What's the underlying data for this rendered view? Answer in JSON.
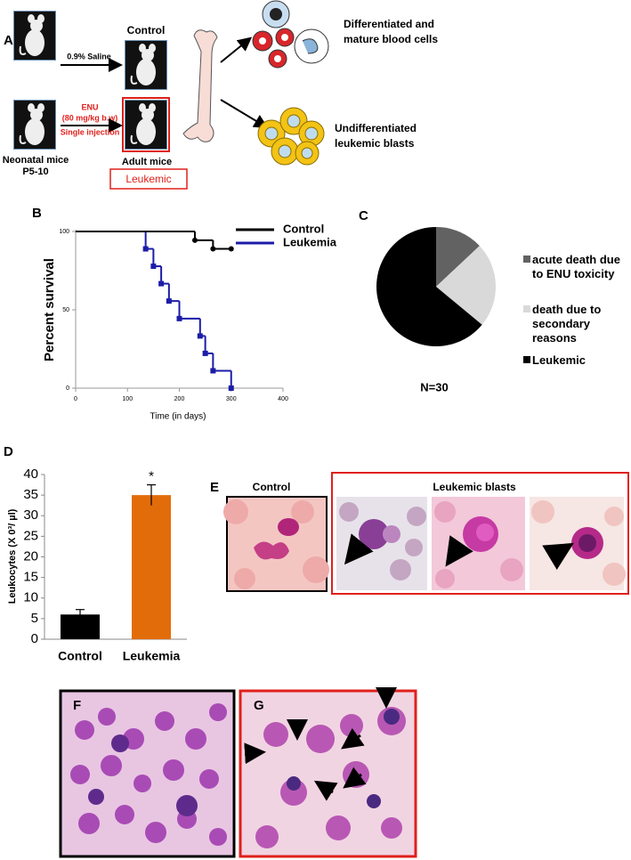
{
  "panel_labels": [
    "A",
    "B",
    "C",
    "D",
    "E",
    "F",
    "G"
  ],
  "diagram": {
    "control": "Control",
    "saline": "0.9% Saline",
    "enu": "ENU",
    "dose": "(80 mg/kg b.w)",
    "injection": "Single injection",
    "neonatal": "Neonatal mice",
    "age": "P5-10",
    "adult": "Adult mice",
    "leukemic": "Leukemic",
    "differentiated": [
      "Differentiated and",
      "mature blood cells"
    ],
    "undifferentiated": [
      "Undifferentiated",
      "leukemic blasts"
    ]
  },
  "chart_data": [
    {
      "type": "step",
      "ylabel": "Percent survival",
      "xlabel": "Time (in days)",
      "xlim": [
        0,
        400
      ],
      "xticks": [
        0,
        100,
        200,
        300,
        400
      ],
      "ylim": [
        0,
        100
      ],
      "yticks": [
        0,
        50,
        100
      ],
      "series": [
        {
          "name": "Control",
          "color": "#000000",
          "marker": "circle",
          "x": [
            0,
            230,
            265,
            300
          ],
          "values": [
            100,
            94.4,
            88.9,
            88.9
          ]
        },
        {
          "name": "Leukemia",
          "color": "#1c1ca8",
          "marker": "square",
          "x": [
            0,
            135,
            150,
            165,
            180,
            200,
            240,
            250,
            265,
            300
          ],
          "values": [
            100,
            88.9,
            77.8,
            66.7,
            55.6,
            44.4,
            33.3,
            22.2,
            11.1,
            0
          ]
        }
      ]
    },
    {
      "type": "pie",
      "categories": [
        "acute death due to ENU toxicity",
        "death due to secondary reasons",
        "Leukemic"
      ],
      "values": [
        13,
        23,
        64
      ],
      "colors": [
        "#626262",
        "#d9d9d9",
        "#000000"
      ],
      "annotation": "N=30"
    },
    {
      "type": "bar",
      "ylabel": "Leukocytes (X 0³/ µl)",
      "categories": [
        "Control",
        "Leukemia"
      ],
      "values": [
        6,
        35
      ],
      "errors": [
        1.2,
        2.5
      ],
      "colors": [
        "#000000",
        "#e36c0a"
      ],
      "ylim": [
        0,
        40
      ],
      "yticks": [
        0,
        5,
        10,
        15,
        20,
        25,
        30,
        35,
        40
      ],
      "annotation": "*"
    }
  ],
  "micrographs": {
    "control": "Control",
    "leukemic": "Leukemic  blasts"
  }
}
